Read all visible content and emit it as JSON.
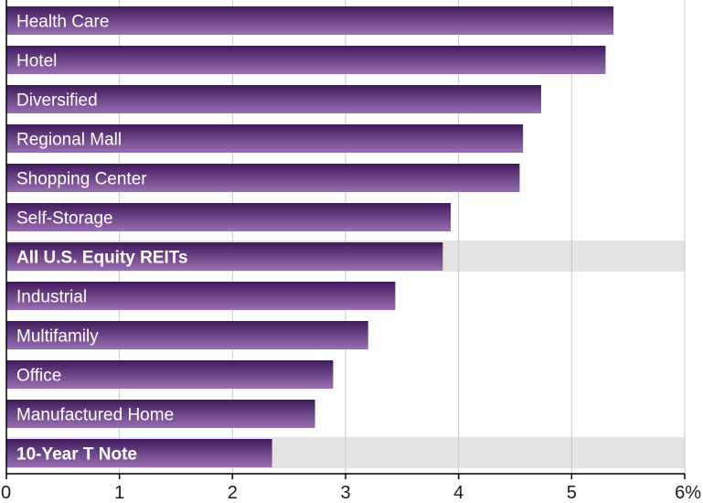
{
  "chart_data": {
    "type": "bar",
    "orientation": "horizontal",
    "categories": [
      "Health Care",
      "Hotel",
      "Diversified",
      "Regional Mall",
      "Shopping Center",
      "Self-Storage",
      "All U.S. Equity REITs",
      "Industrial",
      "Multifamily",
      "Office",
      "Manufactured Home",
      "10-Year T Note"
    ],
    "values": [
      5.37,
      5.3,
      4.73,
      4.57,
      4.54,
      3.93,
      3.86,
      3.44,
      3.2,
      2.89,
      2.73,
      2.35
    ],
    "highlighted": [
      "All U.S. Equity REITs",
      "10-Year T Note"
    ],
    "xlim": [
      0,
      6
    ],
    "xticks": [
      0,
      1,
      2,
      3,
      4,
      5,
      6
    ],
    "xtick_labels": [
      "0",
      "1",
      "2",
      "3",
      "4",
      "5",
      "6%"
    ],
    "grid": true,
    "legend": "none",
    "colors": {
      "bar_dark": "#3f1b5c",
      "bar_light": "#9a6fb3",
      "highlight_band": "#e4e4e4",
      "grid": "#c8c8c8",
      "axis": "#000000"
    }
  }
}
